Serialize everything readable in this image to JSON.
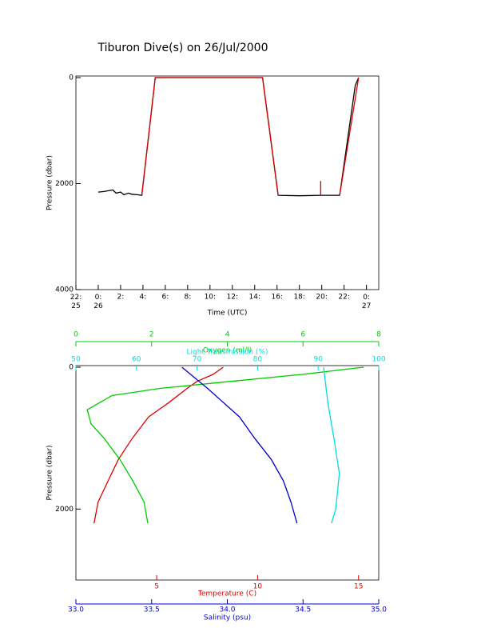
{
  "chart_data": [
    {
      "type": "line",
      "title": "Tiburon Dive(s) on 26/Jul/2000",
      "x_label": "Time (UTC)",
      "y_label": "Pressure (dbar)",
      "xlim": [
        -2,
        25.1
      ],
      "xticks": [
        {
          "value": -2,
          "label": "22:\n25"
        },
        {
          "value": 0,
          "label": "0:\n26"
        },
        {
          "value": 2,
          "label": "2:"
        },
        {
          "value": 4,
          "label": "4:"
        },
        {
          "value": 6,
          "label": "6:"
        },
        {
          "value": 8,
          "label": "8:"
        },
        {
          "value": 10,
          "label": "10:"
        },
        {
          "value": 12,
          "label": "12:"
        },
        {
          "value": 14,
          "label": "14:"
        },
        {
          "value": 16,
          "label": "16:"
        },
        {
          "value": 18,
          "label": "18:"
        },
        {
          "value": 20,
          "label": "20:"
        },
        {
          "value": 22,
          "label": "22:"
        },
        {
          "value": 24,
          "label": "0:\n27"
        }
      ],
      "ylim": [
        0,
        4000
      ],
      "y_inverted": true,
      "yticks": [
        0,
        2000,
        4000
      ],
      "series": [
        {
          "color": "#000000",
          "x": [
            0,
            0.5,
            1,
            1.3,
            1.6,
            2,
            2.3,
            2.7,
            3,
            3.5,
            3.9,
            5.1,
            14.7,
            16.1,
            18,
            20,
            21.6,
            23,
            23.3
          ],
          "values": [
            2160,
            2150,
            2130,
            2120,
            2180,
            2160,
            2210,
            2180,
            2200,
            2210,
            2220,
            0,
            0,
            2220,
            2230,
            2220,
            2220,
            150,
            0
          ]
        },
        {
          "color": "#dd0000",
          "x": [
            3.9,
            5.1,
            14.7,
            16.1,
            17,
            19.9,
            19.9,
            20,
            21.6,
            23.3
          ],
          "values": [
            2220,
            0,
            0,
            2220,
            null,
            1950,
            2230,
            null,
            2220,
            0
          ]
        }
      ]
    },
    {
      "type": "line",
      "y_label": "Pressure (dbar)",
      "ylim": [
        0,
        3000
      ],
      "y_inverted": true,
      "yticks": [
        0,
        2000
      ],
      "x_axes": [
        {
          "label": "Oxygen (ml/l)",
          "color": "#00cc00",
          "position": "top-outer",
          "xlim": [
            0,
            8
          ],
          "xticks": [
            0,
            2,
            4,
            6,
            8
          ]
        },
        {
          "label": "Light Transmission (%)",
          "color": "#00dddd",
          "position": "top",
          "xlim": [
            50,
            100
          ],
          "xticks": [
            50,
            60,
            70,
            80,
            90,
            100
          ]
        },
        {
          "label": "Temperature (C)",
          "color": "#dd0000",
          "position": "bottom",
          "xlim": [
            1,
            16
          ],
          "xticks": [
            5,
            10,
            15
          ]
        },
        {
          "label": "Salinity (psu)",
          "color": "#0000cc",
          "position": "bottom-outer",
          "xlim": [
            33,
            35
          ],
          "xticks": [
            {
              "value": 33,
              "label": "33.0"
            },
            {
              "value": 33.5,
              "label": "33.5"
            },
            {
              "value": 34,
              "label": "34.0"
            },
            {
              "value": 34.5,
              "label": "34.5"
            },
            {
              "value": 35,
              "label": "35.0"
            }
          ]
        }
      ],
      "series": [
        {
          "color": "#dd0000",
          "x_axis": 2,
          "x": [
            8.3,
            7.8,
            7.0,
            6.5,
            5.6,
            4.6,
            3.8,
            3.1,
            2.6,
            2.1,
            1.9
          ],
          "values": [
            0,
            100,
            200,
            300,
            500,
            700,
            1000,
            1300,
            1600,
            1900,
            2200
          ]
        },
        {
          "color": "#00cc00",
          "x_axis": 0,
          "x": [
            7.6,
            6.0,
            4.1,
            2.2,
            0.95,
            0.3,
            0.4,
            0.74,
            1.16,
            1.5,
            1.8,
            1.9
          ],
          "values": [
            0,
            100,
            200,
            300,
            400,
            600,
            800,
            1000,
            1300,
            1600,
            1900,
            2200
          ]
        },
        {
          "color": "#00dddd",
          "x_axis": 1,
          "x": [
            90.9,
            91.6,
            92.6,
            93.5,
            92.9,
            92.2
          ],
          "values": [
            0,
            500,
            1000,
            1500,
            2000,
            2200
          ]
        },
        {
          "color": "#0000cc",
          "x_axis": 3,
          "x": [
            33.7,
            33.87,
            34.08,
            34.18,
            34.29,
            34.37,
            34.42,
            34.46
          ],
          "values": [
            0,
            300,
            700,
            1000,
            1300,
            1600,
            1900,
            2200
          ]
        }
      ]
    }
  ]
}
